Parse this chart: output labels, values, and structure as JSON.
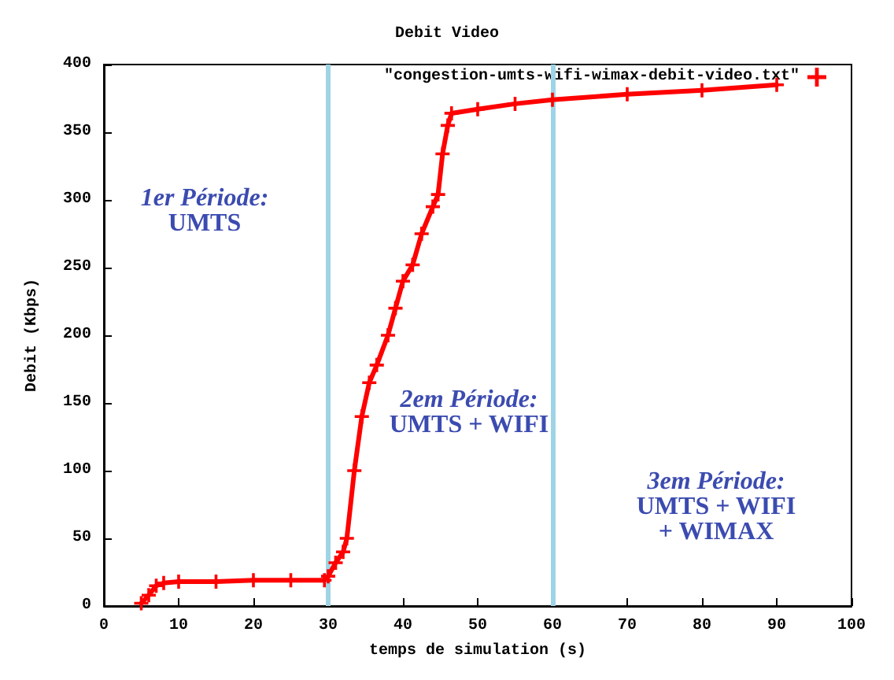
{
  "chart_data": {
    "type": "line",
    "title": "Debit Video",
    "xlabel": "temps de simulation (s)",
    "ylabel": "Debit (Kbps)",
    "xlim": [
      0,
      100
    ],
    "xticks": [
      0,
      10,
      20,
      30,
      40,
      50,
      60,
      70,
      80,
      90,
      100
    ],
    "ylim": [
      0,
      400
    ],
    "yticks": [
      0,
      50,
      100,
      150,
      200,
      250,
      300,
      350,
      400
    ],
    "grid": false,
    "legend": "top right",
    "marker": "cross",
    "line_style": "solid",
    "series": [
      {
        "name": "\"congestion-umts-wifi-wimax-debit-video.txt\"",
        "color": "#ff0000",
        "x": [
          5,
          6,
          7,
          8,
          10,
          15,
          20,
          25,
          29.5,
          30,
          31,
          32,
          32.5,
          33.5,
          34.5,
          35.5,
          36.5,
          38,
          39,
          40,
          41.3,
          42.5,
          44,
          44.7,
          45.3,
          46,
          46.5,
          50,
          55,
          60,
          70,
          80,
          90
        ],
        "values": [
          2,
          8,
          15,
          17,
          18,
          18,
          19,
          19,
          19,
          22,
          32,
          40,
          50,
          100,
          140,
          165,
          178,
          200,
          220,
          240,
          252,
          275,
          295,
          304,
          334,
          355,
          364,
          367,
          371,
          374,
          378,
          381,
          385
        ]
      }
    ],
    "ref_lines": [
      {
        "axis": "x",
        "value": 30,
        "color": "#9fd4e6"
      },
      {
        "axis": "x",
        "value": 60,
        "color": "#9fd4e6"
      }
    ],
    "annotations": [
      "1er Période:\nUMTS",
      "2em Période:\nUMTS + WIFI",
      "3em Période:\nUMTS + WIFI\n+ WIMAX"
    ]
  }
}
